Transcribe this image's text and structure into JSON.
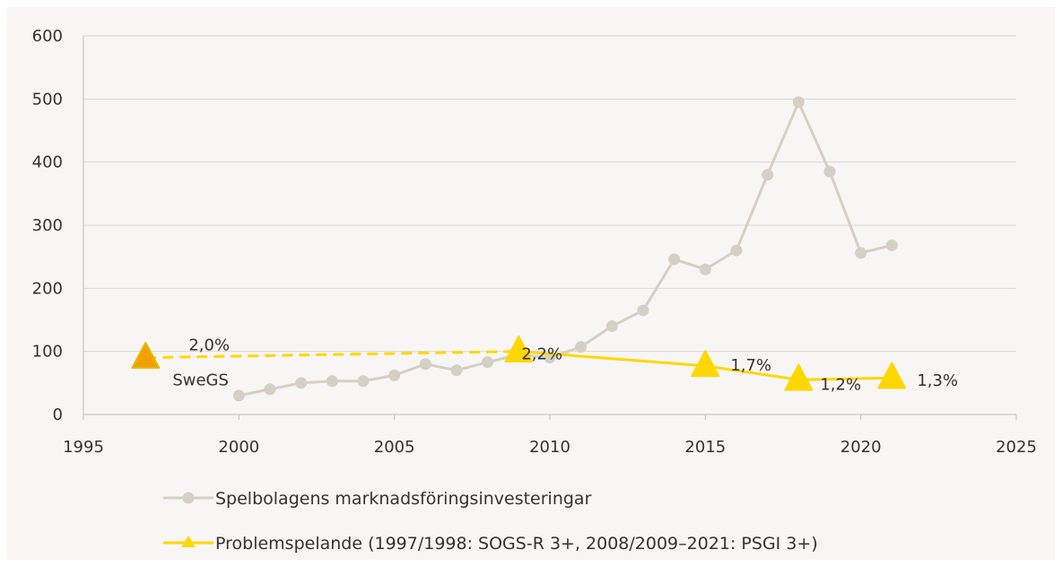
{
  "chart_data": {
    "type": "line",
    "title": "",
    "xlabel": "",
    "ylabel": "",
    "xlim": [
      1995,
      2025
    ],
    "ylim": [
      0,
      600
    ],
    "x_ticks": [
      "1995",
      "2000",
      "2005",
      "2010",
      "2015",
      "2020",
      "2025"
    ],
    "y_ticks": [
      "0",
      "100",
      "200",
      "300",
      "400",
      "500",
      "600"
    ],
    "grid": "horizontal",
    "legend_position": "bottom",
    "series": [
      {
        "name": "Spelbolagens marknadsföringsinvesteringar",
        "color": "#d6cfc4",
        "marker": "circle",
        "x": [
          2000,
          2001,
          2002,
          2003,
          2004,
          2005,
          2006,
          2007,
          2008,
          2009,
          2010,
          2011,
          2012,
          2013,
          2014,
          2015,
          2016,
          2017,
          2018,
          2019,
          2020,
          2021
        ],
        "y": [
          30,
          40,
          50,
          53,
          53,
          62,
          80,
          70,
          83,
          95,
          90,
          107,
          140,
          165,
          246,
          230,
          260,
          380,
          495,
          385,
          256,
          268
        ]
      },
      {
        "name": "Problemspelande (1997/1998: SOGS-R 3+, 2008/2009–2021: PSGI 3+)",
        "color": "#ffd700",
        "marker": "triangle",
        "x": [
          1997,
          2009,
          2015,
          2018,
          2021
        ],
        "y": [
          90,
          100,
          77,
          55,
          58
        ],
        "point_labels": [
          "2,0%",
          "2,2%",
          "1,7%",
          "1,2%",
          "1,3%"
        ],
        "dashed_segment": [
          1997,
          2009
        ]
      }
    ],
    "annotations": [
      {
        "x": 1997,
        "y": 90,
        "text": "SweGS",
        "marker_color": "#f0a000"
      }
    ]
  }
}
